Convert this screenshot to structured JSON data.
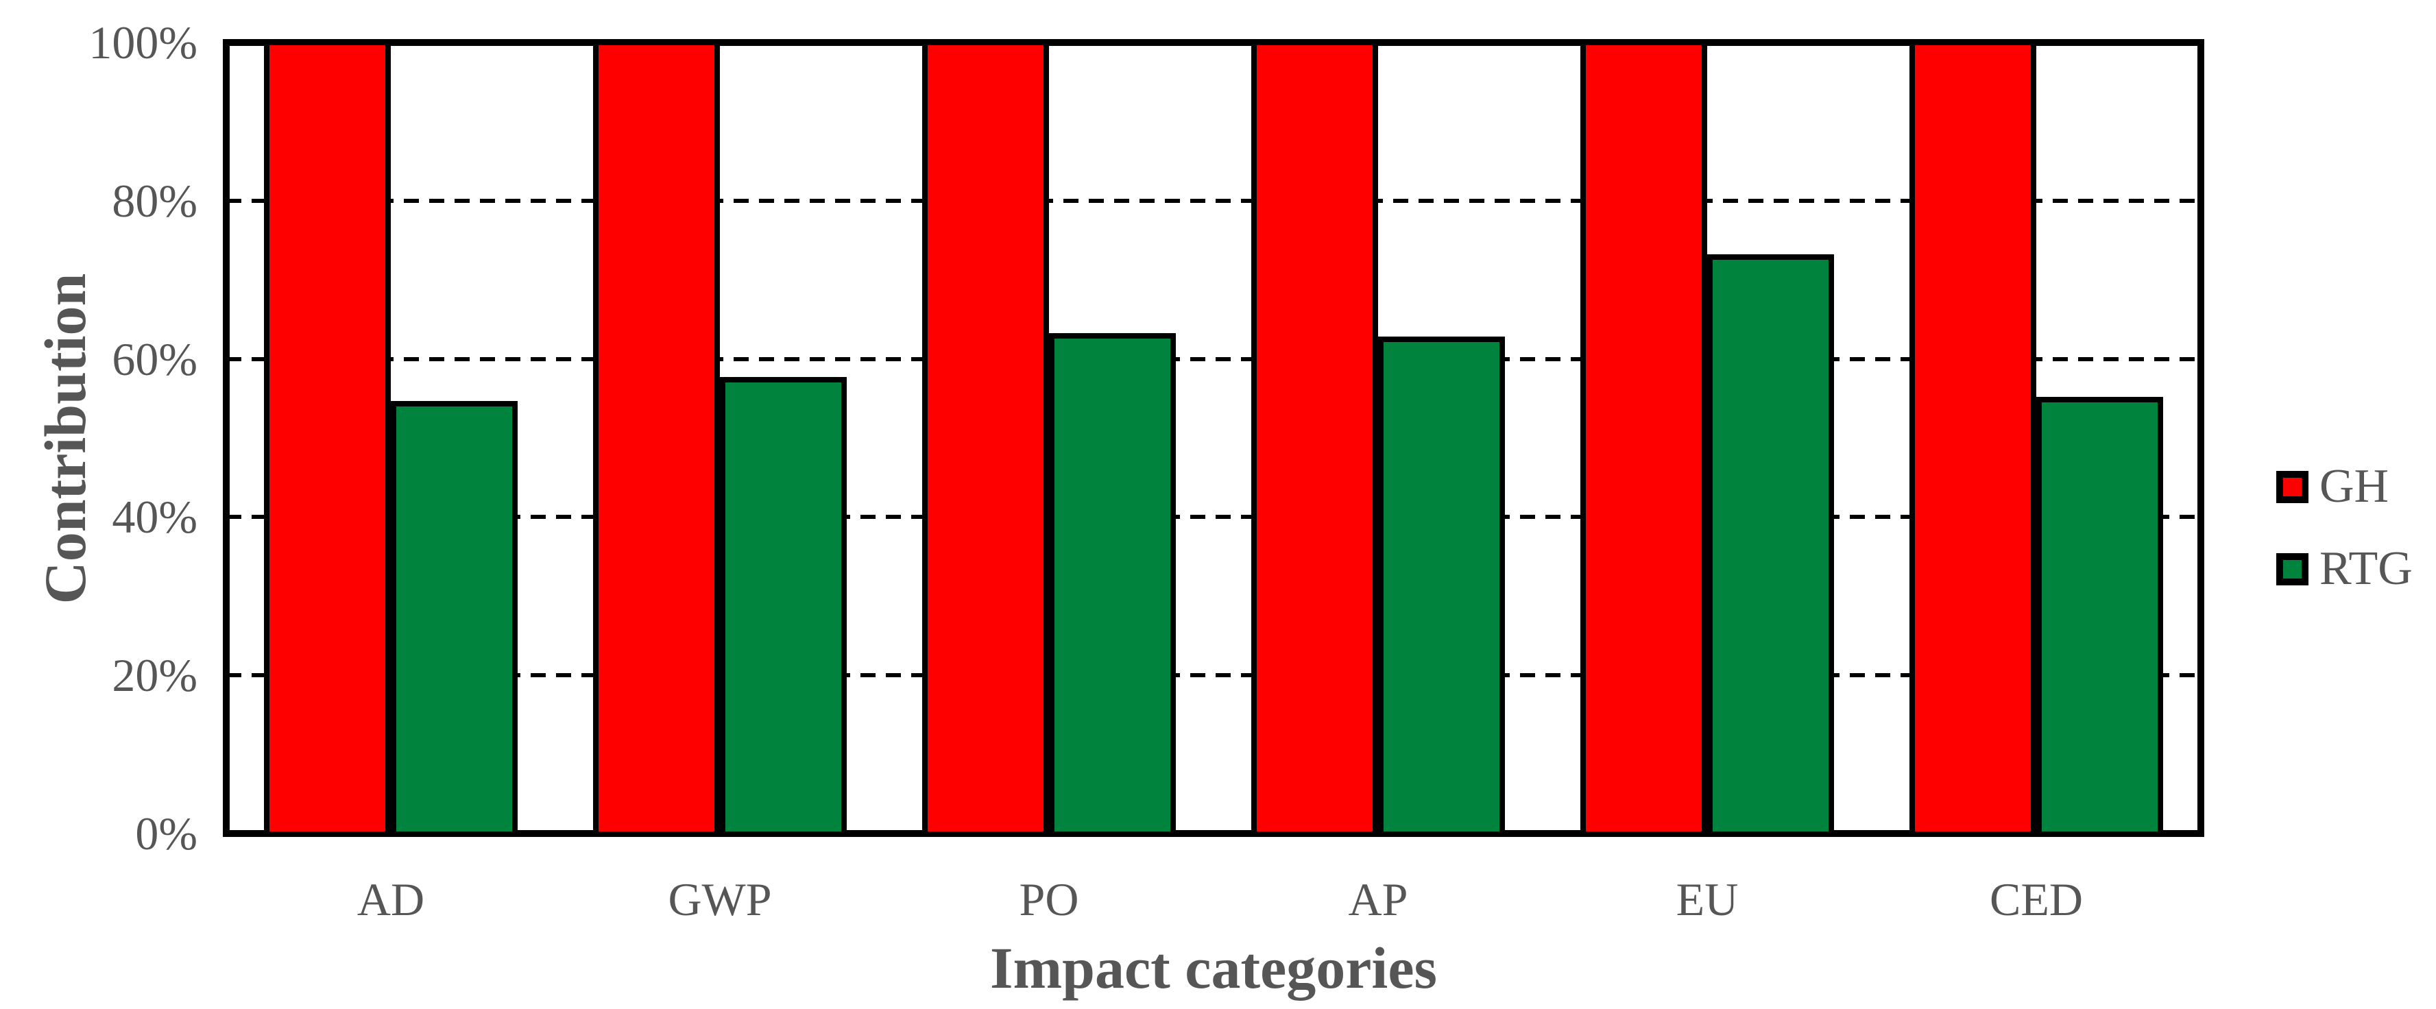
{
  "colors": {
    "background": "#FFFFFF",
    "axis_and_border": "#000000",
    "axis_text": "#565656",
    "gh_red": "#FF0000",
    "rtg_green": "#00843D"
  },
  "chart_data": {
    "type": "bar",
    "title": "",
    "xlabel": "Impact categories",
    "ylabel": "Contribution",
    "categories": [
      "AD",
      "GWP",
      "PO",
      "AP",
      "EU",
      "CED"
    ],
    "series": [
      {
        "name": "GH",
        "color": "#FF0000",
        "values": [
          100,
          100,
          100,
          100,
          100,
          100
        ]
      },
      {
        "name": "RTG",
        "color": "#00843D",
        "values": [
          54.7,
          57.7,
          63.3,
          62.8,
          73.2,
          55.2
        ]
      }
    ],
    "ylim": [
      0,
      100
    ],
    "ytick_values": [
      0,
      20,
      40,
      60,
      80,
      100
    ],
    "ytick_labels": [
      "0%",
      "20%",
      "40%",
      "60%",
      "80%",
      "100%"
    ],
    "gridline_values": [
      20,
      40,
      60,
      80
    ],
    "grid": "horizontal-dashed",
    "legend_position": "right"
  }
}
